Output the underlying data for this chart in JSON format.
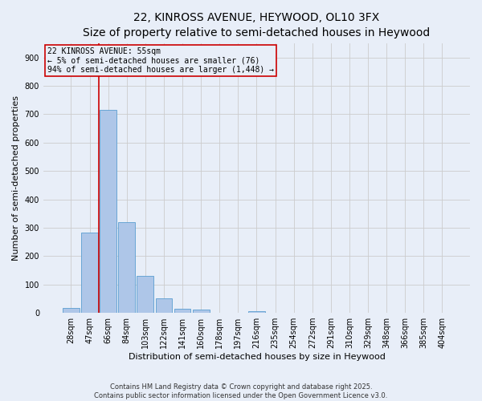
{
  "title_line1": "22, KINROSS AVENUE, HEYWOOD, OL10 3FX",
  "title_line2": "Size of property relative to semi-detached houses in Heywood",
  "xlabel": "Distribution of semi-detached houses by size in Heywood",
  "ylabel": "Number of semi-detached properties",
  "categories": [
    "28sqm",
    "47sqm",
    "66sqm",
    "84sqm",
    "103sqm",
    "122sqm",
    "141sqm",
    "160sqm",
    "178sqm",
    "197sqm",
    "216sqm",
    "235sqm",
    "254sqm",
    "272sqm",
    "291sqm",
    "310sqm",
    "329sqm",
    "348sqm",
    "366sqm",
    "385sqm",
    "404sqm"
  ],
  "values": [
    18,
    284,
    716,
    320,
    130,
    52,
    14,
    11,
    0,
    0,
    7,
    0,
    0,
    0,
    0,
    0,
    0,
    0,
    0,
    0,
    0
  ],
  "bar_color": "#aec6e8",
  "bar_edge_color": "#5a9ed1",
  "grid_color": "#cccccc",
  "bg_color": "#e8eef8",
  "vline_x": 1.5,
  "vline_color": "#cc0000",
  "annotation_text": "22 KINROSS AVENUE: 55sqm\n← 5% of semi-detached houses are smaller (76)\n94% of semi-detached houses are larger (1,448) →",
  "annotation_box_color": "#cc0000",
  "ylim": [
    0,
    950
  ],
  "yticks": [
    0,
    100,
    200,
    300,
    400,
    500,
    600,
    700,
    800,
    900
  ],
  "footer_text": "Contains HM Land Registry data © Crown copyright and database right 2025.\nContains public sector information licensed under the Open Government Licence v3.0.",
  "title_fontsize": 10,
  "subtitle_fontsize": 8.5,
  "axis_label_fontsize": 8,
  "tick_fontsize": 7,
  "annotation_fontsize": 7,
  "footer_fontsize": 6
}
